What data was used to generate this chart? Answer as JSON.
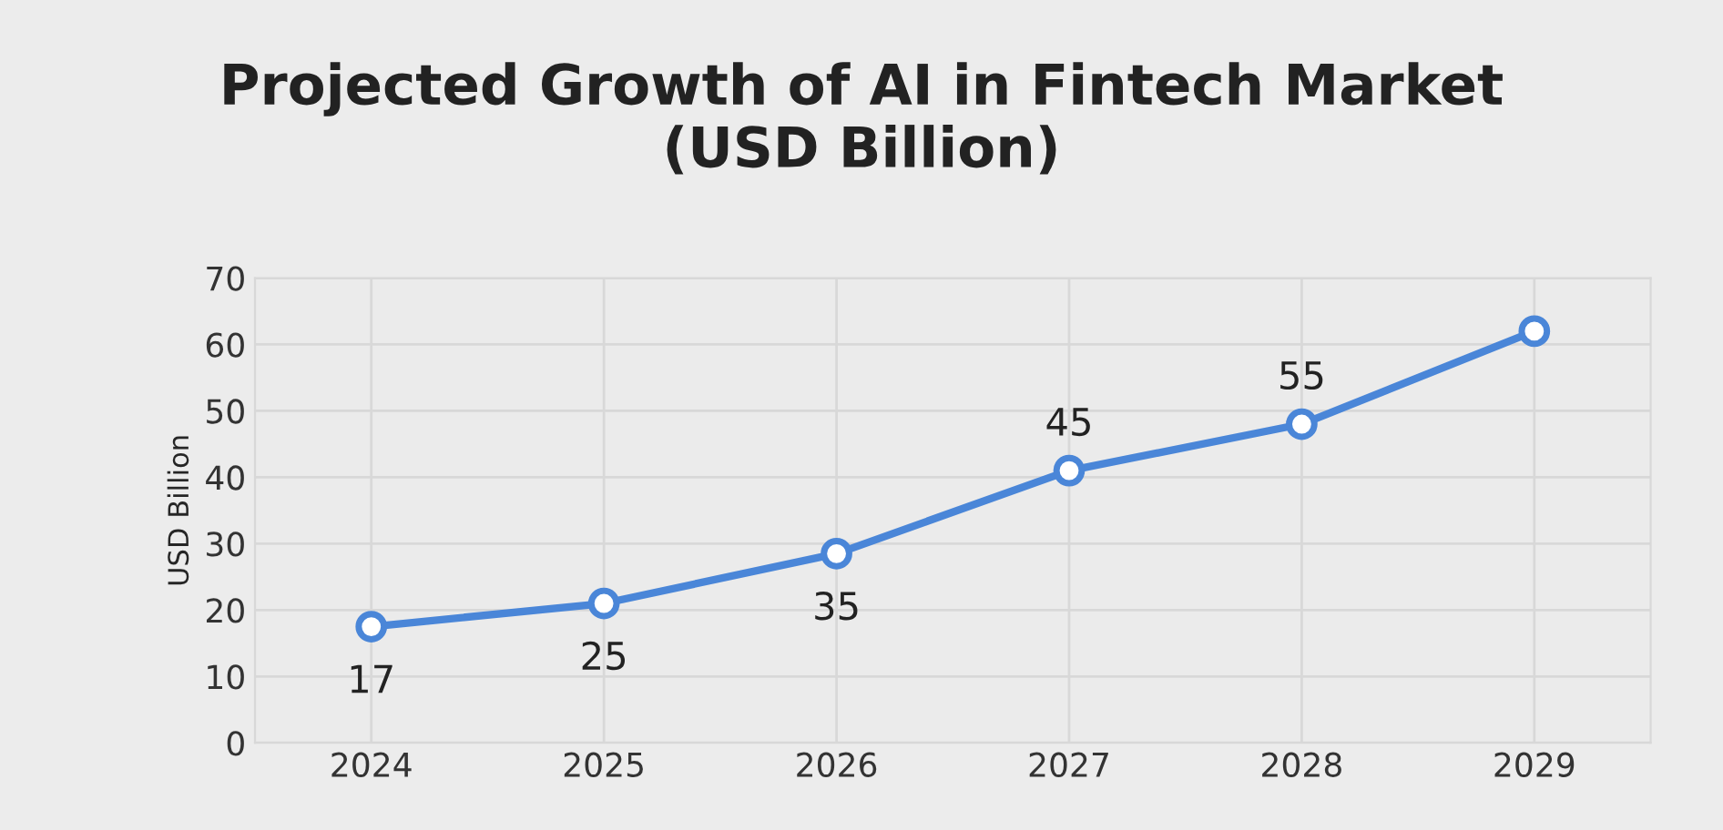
{
  "chart_data": {
    "type": "line",
    "title": "Projected Growth of AI in Fintech Market\n(USD Billion)",
    "ylabel": "USD Billion",
    "categories": [
      "2024",
      "2025",
      "2026",
      "2027",
      "2028",
      "2029"
    ],
    "series": [
      {
        "color": "#4a86d8",
        "values": [
          17.5,
          21,
          28.5,
          41,
          48,
          62
        ]
      }
    ],
    "value_labels": [
      "17",
      "25",
      "35",
      "45",
      "55",
      null
    ],
    "ylim": [
      0,
      70
    ],
    "yticks": [
      0,
      10,
      20,
      30,
      40,
      50,
      60,
      70
    ],
    "grid": true,
    "marker": "circle",
    "line_style": "solid"
  }
}
